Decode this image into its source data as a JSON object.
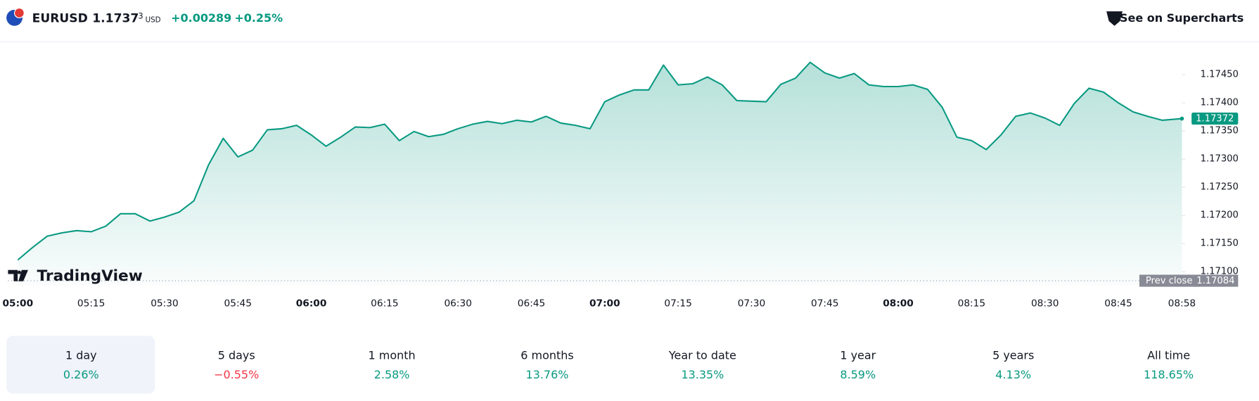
{
  "header": {
    "symbol": "EURUSD",
    "price_main": "1.1737",
    "price_sup": "3",
    "currency": "USD",
    "change": "+0.00289",
    "change_pct": "+0.25%",
    "link": "See on Supercharts"
  },
  "logo": "TradingView",
  "periods": [
    {
      "label": "1 day",
      "value": "0.26%"
    },
    {
      "label": "5 days",
      "value": "−0.55%"
    },
    {
      "label": "1 month",
      "value": "2.58%"
    },
    {
      "label": "6 months",
      "value": "13.76%"
    },
    {
      "label": "Year to date",
      "value": "13.35%"
    },
    {
      "label": "1 year",
      "value": "8.59%"
    },
    {
      "label": "5 years",
      "value": "4.13%"
    },
    {
      "label": "All time",
      "value": "118.65%"
    }
  ],
  "chart_data": {
    "type": "area",
    "x": [
      "05:00",
      "05:03",
      "05:06",
      "05:09",
      "05:12",
      "05:15",
      "05:18",
      "05:21",
      "05:24",
      "05:27",
      "05:30",
      "05:33",
      "05:36",
      "05:39",
      "05:42",
      "05:45",
      "05:48",
      "05:51",
      "05:54",
      "05:57",
      "06:00",
      "06:03",
      "06:06",
      "06:09",
      "06:12",
      "06:15",
      "06:18",
      "06:21",
      "06:24",
      "06:27",
      "06:30",
      "06:33",
      "06:36",
      "06:39",
      "06:42",
      "06:45",
      "06:48",
      "06:51",
      "06:54",
      "06:57",
      "07:00",
      "07:03",
      "07:06",
      "07:09",
      "07:12",
      "07:15",
      "07:18",
      "07:21",
      "07:24",
      "07:27",
      "07:30",
      "07:33",
      "07:36",
      "07:39",
      "07:42",
      "07:45",
      "07:48",
      "07:51",
      "07:54",
      "07:57",
      "08:00",
      "08:03",
      "08:06",
      "08:09",
      "08:12",
      "08:15",
      "08:18",
      "08:21",
      "08:24",
      "08:27",
      "08:30",
      "08:33",
      "08:36",
      "08:39",
      "08:42",
      "08:45",
      "08:48",
      "08:51",
      "08:54",
      "08:58"
    ],
    "series": [
      {
        "name": "EURUSD",
        "color": "#089981",
        "values": [
          1.17121,
          1.17143,
          1.17163,
          1.17169,
          1.17173,
          1.17171,
          1.17181,
          1.17203,
          1.17203,
          1.1719,
          1.17197,
          1.17206,
          1.17226,
          1.1729,
          1.17337,
          1.17304,
          1.17316,
          1.17352,
          1.17354,
          1.1736,
          1.17343,
          1.17323,
          1.17339,
          1.17357,
          1.17356,
          1.17362,
          1.17333,
          1.17349,
          1.1734,
          1.17344,
          1.17354,
          1.17362,
          1.17367,
          1.17363,
          1.17369,
          1.17366,
          1.17376,
          1.17364,
          1.1736,
          1.17354,
          1.17402,
          1.17414,
          1.17423,
          1.17423,
          1.17467,
          1.17432,
          1.17434,
          1.17446,
          1.17432,
          1.17404,
          1.17403,
          1.17402,
          1.17433,
          1.17444,
          1.17472,
          1.17453,
          1.17444,
          1.17452,
          1.17432,
          1.17429,
          1.17429,
          1.17432,
          1.17424,
          1.17392,
          1.17339,
          1.17333,
          1.17317,
          1.17343,
          1.17376,
          1.17382,
          1.17373,
          1.1736,
          1.17399,
          1.17426,
          1.17419,
          1.174,
          1.17384,
          1.17376,
          1.17369,
          1.17372
        ]
      }
    ],
    "xlim": [
      "04:58",
      "08:58"
    ],
    "xticks": [
      "05:00",
      "05:15",
      "05:30",
      "05:45",
      "06:00",
      "06:15",
      "06:30",
      "06:45",
      "07:00",
      "07:15",
      "07:30",
      "07:45",
      "08:00",
      "08:15",
      "08:30",
      "08:45",
      "08:58"
    ],
    "ylim": [
      1.17076,
      1.17504
    ],
    "yticks": [
      {
        "value": 1.171,
        "label": "1.17100"
      },
      {
        "value": 1.1715,
        "label": "1.17150"
      },
      {
        "value": 1.172,
        "label": "1.17200"
      },
      {
        "value": 1.1725,
        "label": "1.17250"
      },
      {
        "value": 1.173,
        "label": "1.17300"
      },
      {
        "value": 1.1735,
        "label": "1.17350"
      },
      {
        "value": 1.174,
        "label": "1.17400"
      },
      {
        "value": 1.1745,
        "label": "1.17450"
      }
    ],
    "prev_close": {
      "label": "Prev close",
      "value": 1.17084
    }
  }
}
